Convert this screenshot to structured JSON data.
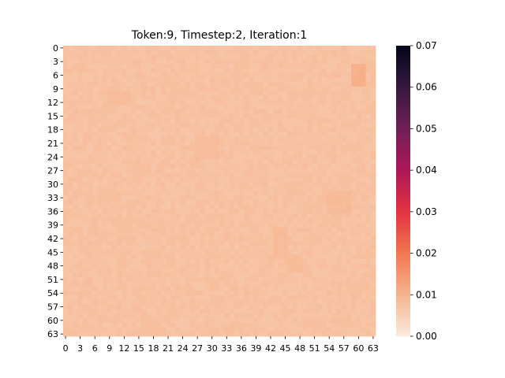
{
  "chart_data": {
    "type": "heatmap",
    "title": "Token:9, Timestep:2, Iteration:1",
    "xlabel": "",
    "ylabel": "",
    "rows": 64,
    "cols": 64,
    "x_tick_labels": [
      "0",
      "3",
      "6",
      "9",
      "12",
      "15",
      "18",
      "21",
      "24",
      "27",
      "30",
      "33",
      "36",
      "39",
      "42",
      "45",
      "48",
      "51",
      "54",
      "57",
      "60",
      "63"
    ],
    "y_tick_labels": [
      "0",
      "3",
      "6",
      "9",
      "12",
      "15",
      "18",
      "21",
      "24",
      "27",
      "30",
      "33",
      "36",
      "39",
      "42",
      "45",
      "48",
      "51",
      "54",
      "57",
      "60",
      "63"
    ],
    "value_range": [
      0.0,
      0.07
    ],
    "typical_value": 0.0075,
    "value_spread": 0.0007,
    "higher_value_regions": [
      {
        "rows": [
          4,
          8
        ],
        "cols": [
          59,
          61
        ],
        "value": 0.0105
      },
      {
        "rows": [
          32,
          36
        ],
        "cols": [
          54,
          58
        ],
        "value": 0.0088
      },
      {
        "rows": [
          40,
          46
        ],
        "cols": [
          43,
          45
        ],
        "value": 0.0086
      },
      {
        "rows": [
          10,
          12
        ],
        "cols": [
          9,
          13
        ],
        "value": 0.0084
      },
      {
        "rows": [
          20,
          24
        ],
        "cols": [
          27,
          31
        ],
        "value": 0.0083
      },
      {
        "rows": [
          46,
          49
        ],
        "cols": [
          46,
          48
        ],
        "value": 0.0085
      }
    ],
    "colorbar": {
      "colormap": "rocket_r",
      "ticks": [
        "0.00",
        "0.01",
        "0.02",
        "0.03",
        "0.04",
        "0.05",
        "0.06",
        "0.07"
      ],
      "tick_values": [
        0.0,
        0.01,
        0.02,
        0.03,
        0.04,
        0.05,
        0.06,
        0.07
      ],
      "colors": [
        "#faebdd",
        "#f6b48e",
        "#f37651",
        "#e13342",
        "#ad1759",
        "#701f57",
        "#35193e",
        "#03051a"
      ]
    }
  }
}
